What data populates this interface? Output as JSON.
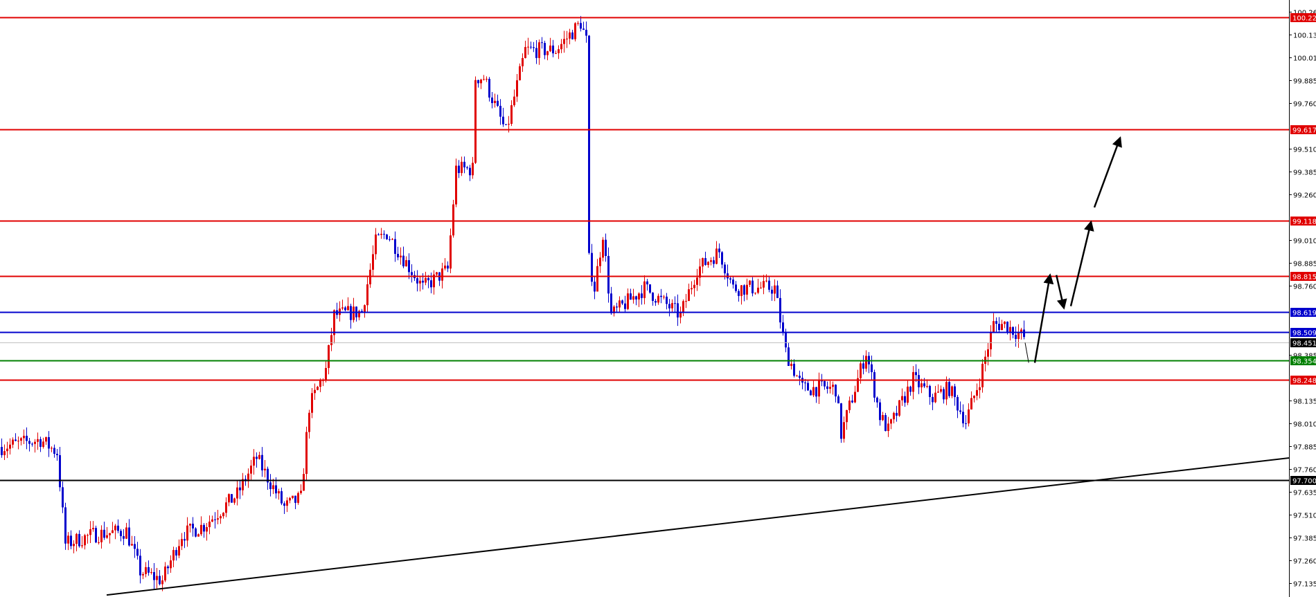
{
  "chart_data": {
    "type": "candlestick",
    "title": "",
    "xlabel": "",
    "ylabel": "",
    "ylim": [
      97.07,
      100.29
    ],
    "grid": false,
    "y_ticks": [
      "100.260",
      "100.135",
      "100.010",
      "99.885",
      "99.760",
      "99.510",
      "99.385",
      "99.260",
      "99.010",
      "98.885",
      "98.760",
      "98.385",
      "98.135",
      "98.010",
      "97.885",
      "97.760",
      "97.635",
      "97.510",
      "97.385",
      "97.260",
      "97.135"
    ],
    "colors": {
      "bull": "#e00000",
      "bear": "#0000cc",
      "axis": "#000000"
    },
    "candle_count": 370,
    "price_path": [
      [
        0,
        97.88
      ],
      [
        14,
        97.92
      ],
      [
        20,
        97.85
      ],
      [
        23,
        97.35
      ],
      [
        33,
        97.4
      ],
      [
        45,
        97.42
      ],
      [
        50,
        97.2
      ],
      [
        58,
        97.15
      ],
      [
        65,
        97.4
      ],
      [
        73,
        97.45
      ],
      [
        85,
        97.62
      ],
      [
        92,
        97.82
      ],
      [
        102,
        97.55
      ],
      [
        108,
        97.6
      ],
      [
        111,
        98.1
      ],
      [
        117,
        98.3
      ],
      [
        120,
        98.6
      ],
      [
        130,
        98.62
      ],
      [
        135,
        99.0
      ],
      [
        139,
        99.05
      ],
      [
        152,
        98.75
      ],
      [
        161,
        98.85
      ],
      [
        164,
        99.4
      ],
      [
        170,
        99.4
      ],
      [
        171,
        99.9
      ],
      [
        174,
        99.9
      ],
      [
        182,
        99.6
      ],
      [
        189,
        100.05
      ],
      [
        200,
        100.05
      ],
      [
        209,
        100.2
      ],
      [
        211,
        100.1
      ],
      [
        212,
        98.9
      ],
      [
        214,
        98.75
      ],
      [
        217,
        99.05
      ],
      [
        220,
        98.6
      ],
      [
        232,
        98.75
      ],
      [
        245,
        98.6
      ],
      [
        251,
        98.85
      ],
      [
        259,
        98.95
      ],
      [
        264,
        98.75
      ],
      [
        279,
        98.75
      ],
      [
        283,
        98.4
      ],
      [
        289,
        98.2
      ],
      [
        301,
        98.2
      ],
      [
        303,
        97.95
      ],
      [
        312,
        98.4
      ],
      [
        317,
        98.05
      ],
      [
        320,
        97.97
      ],
      [
        329,
        98.25
      ],
      [
        336,
        98.15
      ],
      [
        342,
        98.2
      ],
      [
        348,
        98.02
      ],
      [
        353,
        98.25
      ],
      [
        358,
        98.55
      ],
      [
        362,
        98.55
      ],
      [
        369,
        98.48
      ]
    ],
    "levels": [
      {
        "price": 100.229,
        "label": "100.229",
        "color": "#e00000"
      },
      {
        "price": 99.617,
        "label": "99.617",
        "color": "#e00000"
      },
      {
        "price": 99.118,
        "label": "99.118",
        "color": "#e00000"
      },
      {
        "price": 98.815,
        "label": "98.815",
        "color": "#e00000"
      },
      {
        "price": 98.619,
        "label": "98.619",
        "color": "#0000cc"
      },
      {
        "price": 98.509,
        "label": "98.509",
        "color": "#0000cc"
      },
      {
        "price": 98.451,
        "label": "98.451",
        "color": "#c0c0c0",
        "label_bg": "#000000"
      },
      {
        "price": 98.354,
        "label": "98.354",
        "color": "#008000"
      },
      {
        "price": 98.248,
        "label": "98.248",
        "color": "#e00000"
      },
      {
        "price": 97.7,
        "label": "97.700",
        "color": "#000000"
      }
    ],
    "trendline": {
      "from": [
        38,
        97.07
      ],
      "to": [
        465,
        97.82
      ],
      "color": "#000000"
    },
    "projection_arrows": [
      {
        "from": [
          369.5,
          98.45
        ],
        "to": [
          370.8,
          98.34
        ],
        "thin": true
      },
      {
        "from": [
          373,
          98.34
        ],
        "to": [
          378.5,
          98.82
        ]
      },
      {
        "from": [
          380.8,
          98.82
        ],
        "to": [
          383.5,
          98.64
        ]
      },
      {
        "from": [
          386,
          98.65
        ],
        "to": [
          393.3,
          99.11
        ]
      },
      {
        "from": [
          394.5,
          99.19
        ],
        "to": [
          403.8,
          99.57
        ]
      }
    ]
  }
}
